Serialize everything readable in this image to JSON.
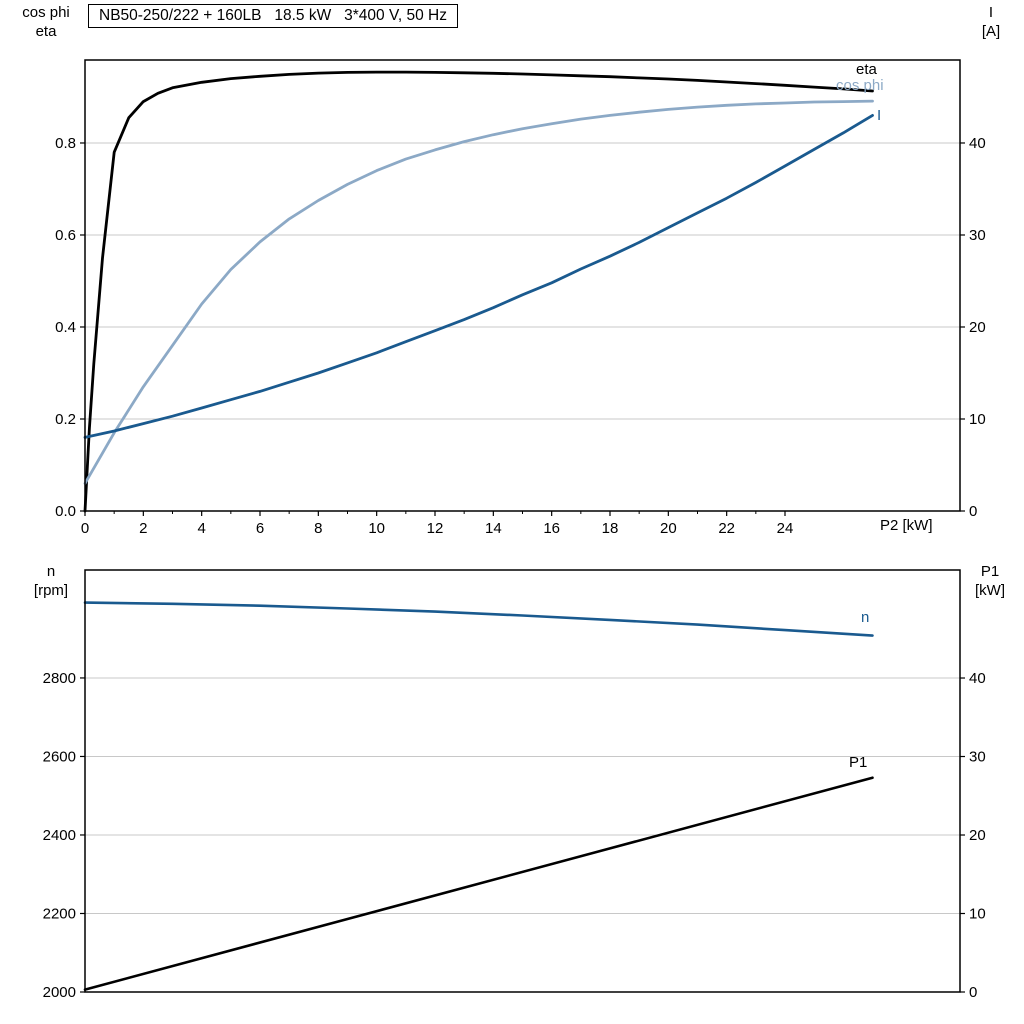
{
  "colors": {
    "background": "#ffffff",
    "axis": "#000000",
    "grid": "#c8c8c8",
    "curve_dark_blue": "#1a5a8f",
    "curve_light_blue": "#8ca9c6",
    "curve_black": "#000000"
  },
  "axis_headers": {
    "top_left": [
      "cos phi",
      "eta"
    ],
    "top_right": [
      "I",
      "[A]"
    ],
    "bottom_left": [
      "n",
      "[rpm]"
    ],
    "bottom_right": [
      "P1",
      "[kW]"
    ]
  },
  "chart_data": [
    {
      "type": "line",
      "title": "NB50-250/222 + 160LB   18.5 kW   3*400 V, 50 Hz",
      "x_axis": {
        "title": "P2 [kW]",
        "min": 0,
        "max": 30,
        "tick_values": [
          0,
          2,
          4,
          6,
          8,
          10,
          12,
          14,
          16,
          18,
          20,
          22,
          24
        ],
        "tick_labels": [
          "0",
          "2",
          "4",
          "6",
          "8",
          "10",
          "12",
          "14",
          "16",
          "18",
          "20",
          "22",
          "24"
        ]
      },
      "y_left": {
        "title": "cos phi / eta",
        "min": 0,
        "max": 0.9804,
        "tick_values": [
          0.8,
          0.6,
          0.4,
          0.2,
          0
        ],
        "tick_labels": [
          "0.8",
          "0.6",
          "0.4",
          "0.2",
          "0.0"
        ],
        "grid": true
      },
      "y_right": {
        "title": "I [A]",
        "min": 0,
        "max": 49.02,
        "tick_values": [
          40,
          30,
          20,
          10,
          0
        ],
        "tick_labels": [
          "40",
          "30",
          "20",
          "10",
          "0"
        ]
      },
      "legend_position": "curve-end-labels",
      "series": [
        {
          "name": "eta",
          "color": "#000000",
          "axis": "left",
          "width": 2.8,
          "points": [
            [
              0,
              0
            ],
            [
              0.15,
              0.18
            ],
            [
              0.3,
              0.32
            ],
            [
              0.6,
              0.55
            ],
            [
              1,
              0.78
            ],
            [
              1.5,
              0.855
            ],
            [
              2,
              0.89
            ],
            [
              2.5,
              0.908
            ],
            [
              3,
              0.92
            ],
            [
              4,
              0.932
            ],
            [
              5,
              0.94
            ],
            [
              6,
              0.945
            ],
            [
              7,
              0.949
            ],
            [
              8,
              0.952
            ],
            [
              9,
              0.9535
            ],
            [
              10,
              0.954
            ],
            [
              11,
              0.954
            ],
            [
              12,
              0.9535
            ],
            [
              13,
              0.9525
            ],
            [
              14,
              0.9515
            ],
            [
              15,
              0.95
            ],
            [
              16,
              0.948
            ],
            [
              17,
              0.946
            ],
            [
              18,
              0.944
            ],
            [
              19,
              0.9415
            ],
            [
              20,
              0.939
            ],
            [
              21,
              0.936
            ],
            [
              22,
              0.9325
            ],
            [
              23,
              0.929
            ],
            [
              24,
              0.9255
            ],
            [
              25,
              0.9215
            ],
            [
              26,
              0.9175
            ],
            [
              27,
              0.913
            ]
          ]
        },
        {
          "name": "cos phi",
          "color": "#8ca9c6",
          "axis": "left",
          "width": 2.8,
          "points": [
            [
              0,
              0.06
            ],
            [
              1,
              0.17
            ],
            [
              2,
              0.27
            ],
            [
              3,
              0.36
            ],
            [
              4,
              0.45
            ],
            [
              5,
              0.525
            ],
            [
              6,
              0.585
            ],
            [
              7,
              0.635
            ],
            [
              8,
              0.675
            ],
            [
              9,
              0.71
            ],
            [
              10,
              0.74
            ],
            [
              11,
              0.765
            ],
            [
              12,
              0.785
            ],
            [
              13,
              0.803
            ],
            [
              14,
              0.818
            ],
            [
              15,
              0.831
            ],
            [
              16,
              0.842
            ],
            [
              17,
              0.852
            ],
            [
              18,
              0.86
            ],
            [
              19,
              0.867
            ],
            [
              20,
              0.873
            ],
            [
              21,
              0.878
            ],
            [
              22,
              0.882
            ],
            [
              23,
              0.885
            ],
            [
              24,
              0.887
            ],
            [
              25,
              0.889
            ],
            [
              26,
              0.89
            ],
            [
              27,
              0.891
            ]
          ]
        },
        {
          "name": "I",
          "color": "#1a5a8f",
          "axis": "right",
          "width": 2.8,
          "points": [
            [
              0,
              8
            ],
            [
              1,
              8.7
            ],
            [
              2,
              9.5
            ],
            [
              3,
              10.3
            ],
            [
              4,
              11.2
            ],
            [
              5,
              12.1
            ],
            [
              6,
              13
            ],
            [
              7,
              14
            ],
            [
              8,
              15
            ],
            [
              9,
              16.1
            ],
            [
              10,
              17.2
            ],
            [
              11,
              18.4
            ],
            [
              12,
              19.6
            ],
            [
              13,
              20.8
            ],
            [
              14,
              22.1
            ],
            [
              15,
              23.5
            ],
            [
              16,
              24.8
            ],
            [
              17,
              26.3
            ],
            [
              18,
              27.7
            ],
            [
              19,
              29.2
            ],
            [
              20,
              30.8
            ],
            [
              21,
              32.4
            ],
            [
              22,
              34
            ],
            [
              23,
              35.7
            ],
            [
              24,
              37.5
            ],
            [
              25,
              39.3
            ],
            [
              26,
              41.1
            ],
            [
              27,
              43
            ]
          ]
        }
      ]
    },
    {
      "type": "line",
      "title": "",
      "x_axis": {
        "title": "",
        "min": 0,
        "max": 30,
        "tick_values": [],
        "tick_labels": []
      },
      "y_left": {
        "title": "n [rpm]",
        "min": 2000,
        "max": 3075,
        "tick_values": [
          2800,
          2600,
          2400,
          2200,
          2000
        ],
        "tick_labels": [
          "2800",
          "2600",
          "2400",
          "2200",
          "2000"
        ],
        "grid": true
      },
      "y_right": {
        "title": "P1 [kW]",
        "min": 0,
        "max": 53.76,
        "tick_values": [
          40,
          30,
          20,
          10,
          0
        ],
        "tick_labels": [
          "40",
          "30",
          "20",
          "10",
          "0"
        ]
      },
      "legend_position": "curve-end-labels",
      "series": [
        {
          "name": "n",
          "color": "#1a5a8f",
          "axis": "left",
          "width": 2.6,
          "points": [
            [
              0,
              2992
            ],
            [
              3,
              2989
            ],
            [
              6,
              2984
            ],
            [
              9,
              2977
            ],
            [
              12,
              2969
            ],
            [
              15,
              2959
            ],
            [
              18,
              2948
            ],
            [
              21,
              2936
            ],
            [
              24,
              2922
            ],
            [
              27,
              2908
            ]
          ]
        },
        {
          "name": "P1",
          "color": "#000000",
          "axis": "right",
          "width": 2.6,
          "points": [
            [
              0,
              0.3
            ],
            [
              9,
              9.3
            ],
            [
              18,
              18.3
            ],
            [
              27,
              27.3
            ]
          ]
        }
      ]
    }
  ]
}
